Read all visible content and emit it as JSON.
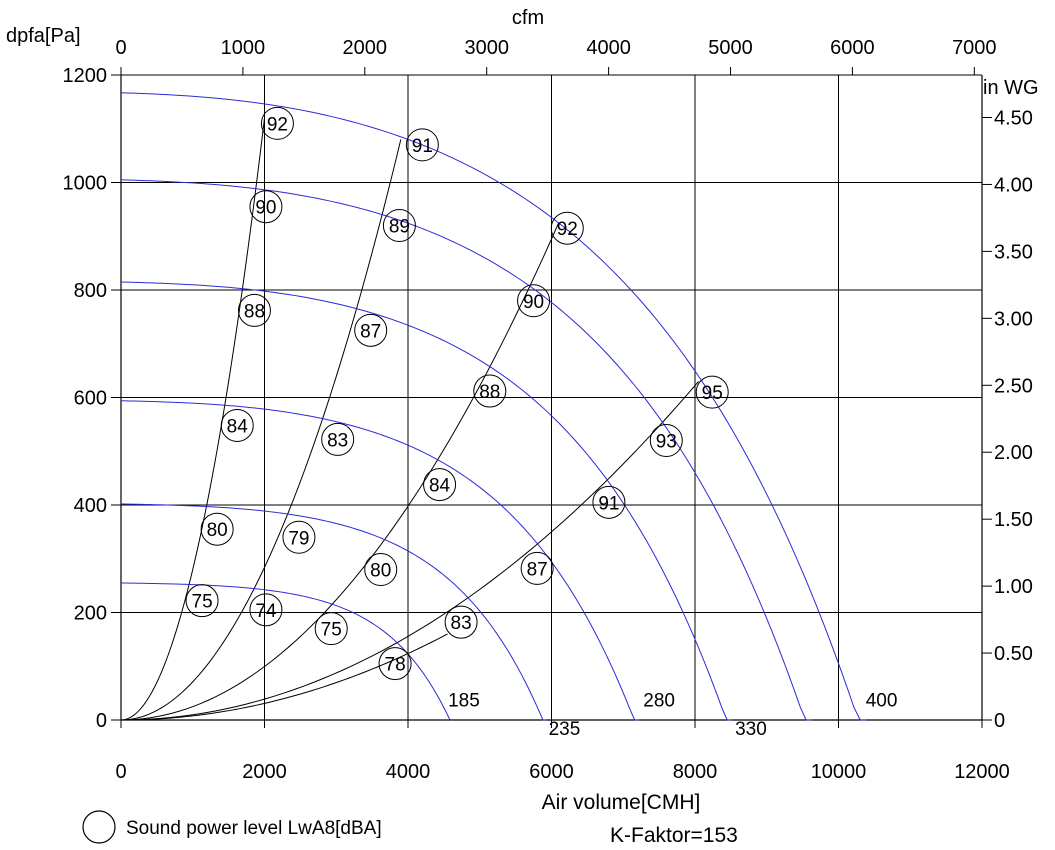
{
  "chart_data": {
    "type": "line",
    "ylabel_left": "dpfa[Pa]",
    "ylabel_right": "in WG",
    "xlabel_bottom": "Air volume[CMH]",
    "xlabel_top": "cfm",
    "k_factor": "K-Faktor=153",
    "legend": {
      "symbol": "circle",
      "text": "Sound power level LwA8[dBA]",
      "position": "bottom-left"
    },
    "grid": true,
    "xlim": [
      0,
      12000
    ],
    "ylim": [
      0,
      1200
    ],
    "x_ticks": [
      "0",
      "2000",
      "4000",
      "6000",
      "8000",
      "10000",
      "12000"
    ],
    "y_ticks": [
      "0",
      "200",
      "400",
      "600",
      "800",
      "1000",
      "1200"
    ],
    "top_ticks": [
      "0",
      "1000",
      "2000",
      "3000",
      "4000",
      "5000",
      "6000",
      "7000"
    ],
    "right_ticks": [
      "0",
      "0.50",
      "1.00",
      "1.50",
      "2.00",
      "2.50",
      "3.00",
      "3.50",
      "4.00",
      "4.50"
    ],
    "series_color": "#2b2bd6",
    "system_color": "#000000",
    "fan_curves": [
      {
        "name": "185",
        "p0": 255,
        "qmax": 4620,
        "knee": 0.55,
        "exp": 3.2
      },
      {
        "name": "235",
        "p0": 402,
        "qmax": 5930,
        "knee": 0.5,
        "exp": 3.0
      },
      {
        "name": "280",
        "p0": 594,
        "qmax": 7220,
        "knee": 0.45,
        "exp": 2.8
      },
      {
        "name": "330",
        "p0": 815,
        "qmax": 8520,
        "knee": 0.42,
        "exp": 2.7
      },
      {
        "name": "",
        "p0": 1005,
        "qmax": 9630,
        "knee": 0.4,
        "exp": 2.6
      },
      {
        "name": "400",
        "p0": 1167,
        "qmax": 10390,
        "knee": 0.38,
        "exp": 2.5
      }
    ],
    "fan_curve_labels": [
      {
        "text": "185",
        "x": 4780,
        "y": 25
      },
      {
        "text": "235",
        "x": 6180,
        "y": -28
      },
      {
        "text": "280",
        "x": 7500,
        "y": 25
      },
      {
        "text": "330",
        "x": 8780,
        "y": -28
      },
      {
        "text": "400",
        "x": 10600,
        "y": 25
      }
    ],
    "system_lines": [
      {
        "x_end": 2000,
        "y_end": 1120
      },
      {
        "x_end": 3900,
        "y_end": 1080
      },
      {
        "x_end": 6100,
        "y_end": 925
      },
      {
        "x_end": 8050,
        "y_end": 630
      },
      {
        "x_end": 4550,
        "y_end": 160
      }
    ],
    "sound_levels": [
      {
        "label": "92",
        "x": 2180,
        "y": 1110
      },
      {
        "label": "91",
        "x": 4200,
        "y": 1070
      },
      {
        "label": "92",
        "x": 6220,
        "y": 915
      },
      {
        "label": "95",
        "x": 8240,
        "y": 610
      },
      {
        "label": "90",
        "x": 2020,
        "y": 955
      },
      {
        "label": "89",
        "x": 3880,
        "y": 920
      },
      {
        "label": "90",
        "x": 5750,
        "y": 780
      },
      {
        "label": "93",
        "x": 7600,
        "y": 520
      },
      {
        "label": "88",
        "x": 1860,
        "y": 762
      },
      {
        "label": "87",
        "x": 3480,
        "y": 725
      },
      {
        "label": "88",
        "x": 5140,
        "y": 612
      },
      {
        "label": "91",
        "x": 6800,
        "y": 405
      },
      {
        "label": "84",
        "x": 1620,
        "y": 548
      },
      {
        "label": "83",
        "x": 3020,
        "y": 522
      },
      {
        "label": "84",
        "x": 4440,
        "y": 438
      },
      {
        "label": "87",
        "x": 5800,
        "y": 282
      },
      {
        "label": "80",
        "x": 1340,
        "y": 355
      },
      {
        "label": "79",
        "x": 2480,
        "y": 340
      },
      {
        "label": "80",
        "x": 3620,
        "y": 280
      },
      {
        "label": "83",
        "x": 4740,
        "y": 182
      },
      {
        "label": "75",
        "x": 1130,
        "y": 222
      },
      {
        "label": "74",
        "x": 2020,
        "y": 205
      },
      {
        "label": "75",
        "x": 2930,
        "y": 170
      },
      {
        "label": "78",
        "x": 3820,
        "y": 105
      }
    ]
  }
}
